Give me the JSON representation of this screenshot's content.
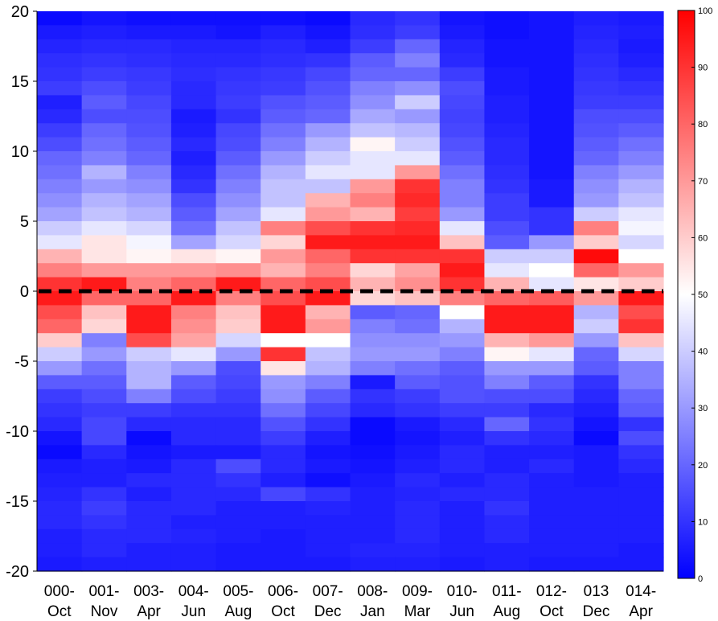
{
  "chart_data": {
    "type": "heatmap",
    "title": "",
    "xlabel": "",
    "ylabel": "",
    "x_categories": [
      [
        "000-",
        "Oct"
      ],
      [
        "001-",
        "Nov"
      ],
      [
        "003-",
        "Apr"
      ],
      [
        "004-",
        "Jun"
      ],
      [
        "005-",
        "Aug"
      ],
      [
        "006-",
        "Oct"
      ],
      [
        "007-",
        "Dec"
      ],
      [
        "008-",
        "Jan"
      ],
      [
        "009-",
        "Mar"
      ],
      [
        "010-",
        "Jun"
      ],
      [
        "011-",
        "Aug"
      ],
      [
        "012-",
        "Oct"
      ],
      [
        "013",
        "Dec"
      ],
      [
        "014-",
        "Apr"
      ]
    ],
    "y_ticks": [
      20,
      15,
      10,
      5,
      0,
      -5,
      -10,
      -15,
      -20
    ],
    "ylim": [
      -20,
      20
    ],
    "colorbar": {
      "min": 0,
      "max": 100,
      "ticks": [
        0,
        10,
        20,
        30,
        40,
        50,
        60,
        70,
        80,
        90,
        100
      ],
      "low_color": "#0000ff",
      "mid_color": "#ffffff",
      "high_color": "#ff0000",
      "position": "right"
    },
    "reference_line": {
      "y": 0,
      "style": "dashed",
      "color": "#000000"
    },
    "y_bins_top_to_bottom": [
      "20 to 19",
      "19 to 18",
      "18 to 17",
      "17 to 16",
      "16 to 15",
      "15 to 14",
      "14 to 13",
      "13 to 12",
      "12 to 11",
      "11 to 10",
      "10 to 9",
      "9 to 8",
      "8 to 7",
      "7 to 6",
      "6 to 5",
      "5 to 4",
      "4 to 3",
      "3 to 2",
      "2 to 1",
      "1 to 0",
      "0 to -1",
      "-1 to -2",
      "-2 to -3",
      "-3 to -4",
      "-4 to -5",
      "-5 to -6",
      "-6 to -7",
      "-7 to -8",
      "-8 to -9",
      "-9 to -10",
      "-10 to -11",
      "-11 to -12",
      "-12 to -13",
      "-13 to -14",
      "-14 to -15",
      "-15 to -16",
      "-16 to -17",
      "-17 to -18",
      "-18 to -19",
      "-19 to -20"
    ],
    "values": [
      [
        2,
        4,
        3,
        3,
        3,
        3,
        2,
        8,
        10,
        4,
        3,
        4,
        6,
        5
      ],
      [
        5,
        6,
        5,
        5,
        4,
        6,
        4,
        9,
        12,
        5,
        3,
        4,
        7,
        6
      ],
      [
        7,
        8,
        8,
        7,
        7,
        8,
        6,
        12,
        20,
        7,
        4,
        4,
        8,
        5
      ],
      [
        9,
        10,
        9,
        8,
        8,
        9,
        10,
        18,
        25,
        8,
        4,
        4,
        9,
        6
      ],
      [
        10,
        12,
        11,
        9,
        10,
        11,
        14,
        20,
        20,
        12,
        5,
        4,
        10,
        8
      ],
      [
        12,
        15,
        12,
        8,
        11,
        12,
        16,
        25,
        28,
        15,
        5,
        4,
        11,
        10
      ],
      [
        6,
        18,
        14,
        8,
        12,
        16,
        18,
        28,
        40,
        14,
        6,
        4,
        12,
        12
      ],
      [
        8,
        15,
        15,
        5,
        10,
        18,
        20,
        33,
        30,
        13,
        6,
        4,
        15,
        15
      ],
      [
        12,
        20,
        16,
        6,
        14,
        22,
        30,
        38,
        36,
        14,
        7,
        4,
        16,
        18
      ],
      [
        15,
        22,
        18,
        8,
        15,
        25,
        35,
        52,
        40,
        16,
        8,
        4,
        18,
        22
      ],
      [
        20,
        25,
        20,
        6,
        18,
        30,
        40,
        45,
        45,
        18,
        8,
        4,
        20,
        25
      ],
      [
        22,
        35,
        25,
        8,
        22,
        35,
        45,
        45,
        70,
        22,
        9,
        4,
        25,
        30
      ],
      [
        25,
        30,
        28,
        10,
        25,
        38,
        38,
        70,
        90,
        25,
        10,
        5,
        28,
        35
      ],
      [
        28,
        35,
        32,
        15,
        28,
        38,
        65,
        75,
        92,
        25,
        12,
        5,
        30,
        38
      ],
      [
        32,
        38,
        35,
        18,
        32,
        45,
        70,
        65,
        88,
        30,
        12,
        10,
        40,
        45
      ],
      [
        40,
        45,
        42,
        22,
        38,
        75,
        85,
        90,
        92,
        45,
        15,
        10,
        75,
        48
      ],
      [
        45,
        55,
        48,
        32,
        42,
        58,
        95,
        95,
        95,
        62,
        18,
        30,
        60,
        42
      ],
      [
        65,
        55,
        52,
        55,
        52,
        70,
        80,
        90,
        90,
        90,
        40,
        40,
        98,
        50
      ],
      [
        75,
        70,
        70,
        70,
        72,
        65,
        75,
        58,
        68,
        95,
        45,
        50,
        80,
        70
      ],
      [
        90,
        95,
        75,
        80,
        95,
        80,
        85,
        65,
        72,
        90,
        65,
        45,
        55,
        60
      ],
      [
        95,
        80,
        80,
        95,
        75,
        85,
        95,
        58,
        62,
        75,
        80,
        82,
        70,
        95
      ],
      [
        85,
        62,
        95,
        75,
        62,
        95,
        65,
        18,
        20,
        50,
        95,
        95,
        35,
        85
      ],
      [
        80,
        58,
        95,
        72,
        60,
        95,
        70,
        25,
        22,
        35,
        95,
        95,
        40,
        90
      ],
      [
        60,
        25,
        85,
        68,
        42,
        50,
        50,
        28,
        28,
        30,
        65,
        70,
        30,
        62
      ],
      [
        40,
        30,
        40,
        45,
        30,
        90,
        38,
        30,
        30,
        25,
        52,
        45,
        20,
        42
      ],
      [
        30,
        22,
        35,
        30,
        15,
        55,
        35,
        25,
        22,
        18,
        30,
        30,
        18,
        25
      ],
      [
        18,
        18,
        35,
        18,
        14,
        30,
        25,
        5,
        18,
        16,
        25,
        18,
        10,
        25
      ],
      [
        12,
        15,
        25,
        15,
        12,
        28,
        18,
        10,
        12,
        16,
        15,
        15,
        8,
        20
      ],
      [
        10,
        12,
        12,
        10,
        10,
        22,
        14,
        8,
        10,
        12,
        12,
        8,
        6,
        18
      ],
      [
        8,
        14,
        8,
        8,
        8,
        16,
        10,
        2,
        5,
        8,
        20,
        10,
        4,
        10
      ],
      [
        4,
        14,
        2,
        8,
        8,
        12,
        6,
        2,
        4,
        6,
        10,
        8,
        2,
        15
      ],
      [
        2,
        8,
        4,
        5,
        5,
        8,
        4,
        3,
        5,
        8,
        6,
        6,
        5,
        10
      ],
      [
        5,
        6,
        5,
        8,
        15,
        8,
        5,
        4,
        6,
        8,
        6,
        8,
        5,
        8
      ],
      [
        6,
        6,
        8,
        8,
        10,
        6,
        3,
        5,
        8,
        6,
        8,
        6,
        5,
        6
      ],
      [
        7,
        10,
        6,
        8,
        8,
        14,
        10,
        6,
        7,
        8,
        8,
        6,
        6,
        6
      ],
      [
        8,
        12,
        8,
        8,
        6,
        6,
        7,
        6,
        8,
        6,
        10,
        6,
        6,
        6
      ],
      [
        8,
        10,
        8,
        6,
        6,
        6,
        6,
        6,
        8,
        6,
        8,
        6,
        6,
        6
      ],
      [
        6,
        8,
        8,
        7,
        6,
        5,
        6,
        6,
        8,
        6,
        8,
        6,
        6,
        6
      ],
      [
        6,
        8,
        6,
        6,
        5,
        5,
        6,
        7,
        7,
        6,
        6,
        6,
        6,
        5
      ],
      [
        5,
        6,
        6,
        6,
        5,
        5,
        5,
        6,
        6,
        5,
        6,
        5,
        5,
        5
      ]
    ]
  }
}
